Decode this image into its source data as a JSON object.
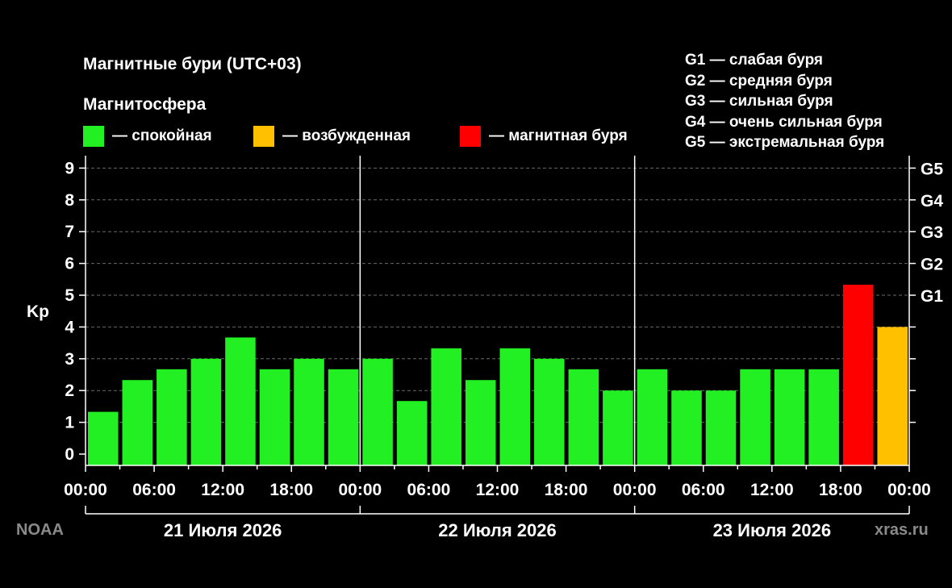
{
  "title": "Магнитные бури (UTC+03)",
  "subtitle": "Магнитосфера",
  "legend": [
    {
      "label": "— спокойная",
      "color": "#22f022"
    },
    {
      "label": "— возбужденная",
      "color": "#ffc000"
    },
    {
      "label": "— магнитная буря",
      "color": "#ff0000"
    }
  ],
  "g_legend": [
    "G1 — слабая буря",
    "G2 — средняя буря",
    "G3 — сильная буря",
    "G4 — очень сильная буря",
    "G5 — экстремальная буря"
  ],
  "source_left": "NOAA",
  "source_right": "xras.ru",
  "chart_data": {
    "type": "bar",
    "ylabel": "Kp",
    "ylim": [
      0,
      9
    ],
    "yticks": [
      "0",
      "1",
      "2",
      "3",
      "4",
      "5",
      "6",
      "7",
      "8",
      "9"
    ],
    "right_ticks": [
      {
        "label": "G1",
        "value": 5
      },
      {
        "label": "G2",
        "value": 6
      },
      {
        "label": "G3",
        "value": 7
      },
      {
        "label": "G4",
        "value": 8
      },
      {
        "label": "G5",
        "value": 9
      }
    ],
    "xticks": [
      "00:00",
      "06:00",
      "12:00",
      "18:00",
      "00:00",
      "06:00",
      "12:00",
      "18:00",
      "00:00",
      "06:00",
      "12:00",
      "18:00",
      "00:00"
    ],
    "days": [
      "21 Июля 2026",
      "22 Июля 2026",
      "23 Июля 2026"
    ],
    "grid": true,
    "values": [
      1.33,
      2.33,
      2.67,
      3.0,
      3.67,
      2.67,
      3.0,
      2.67,
      3.0,
      1.67,
      3.33,
      2.33,
      3.33,
      3.0,
      2.67,
      2.0,
      2.67,
      2.0,
      2.0,
      2.67,
      2.67,
      2.67,
      5.33,
      4.0
    ],
    "levels": [
      "quiet",
      "quiet",
      "quiet",
      "quiet",
      "quiet",
      "quiet",
      "quiet",
      "quiet",
      "quiet",
      "quiet",
      "quiet",
      "quiet",
      "quiet",
      "quiet",
      "quiet",
      "quiet",
      "quiet",
      "quiet",
      "quiet",
      "quiet",
      "quiet",
      "quiet",
      "storm",
      "active"
    ],
    "colors": {
      "quiet": "#22f022",
      "active": "#ffc000",
      "storm": "#ff0000"
    }
  }
}
